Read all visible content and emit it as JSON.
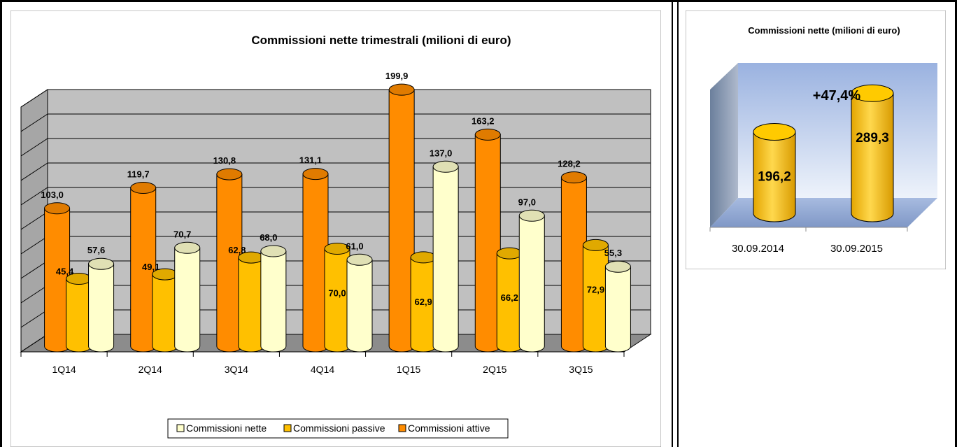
{
  "chart_data": [
    {
      "type": "bar",
      "title": "Commissioni nette trimestrali (milioni di euro)",
      "categories": [
        "1Q14",
        "2Q14",
        "3Q14",
        "4Q14",
        "1Q15",
        "2Q15",
        "3Q15"
      ],
      "series": [
        {
          "name": "Commissioni attive",
          "color": "#ff8c00",
          "values": [
            103.0,
            119.7,
            130.8,
            131.1,
            199.9,
            163.2,
            128.2
          ],
          "labels": [
            "103,0",
            "119,7",
            "130,8",
            "131,1",
            "199,9",
            "163,2",
            "128,2"
          ]
        },
        {
          "name": "Commissioni passive",
          "color": "#ffc000",
          "values": [
            45.4,
            49.1,
            62.8,
            70.0,
            62.9,
            66.2,
            72.9
          ],
          "labels": [
            "45,4",
            "49,1",
            "62,8",
            "70,0",
            "62,9",
            "66,2",
            "72,9"
          ]
        },
        {
          "name": "Commissioni nette",
          "color": "#ffffcc",
          "values": [
            57.6,
            70.7,
            68.0,
            61.0,
            137.0,
            97.0,
            55.3
          ],
          "labels": [
            "57,6",
            "70,7",
            "68,0",
            "61,0",
            "137,0",
            "97,0",
            "55,3"
          ]
        }
      ],
      "ylim": [
        0,
        200
      ],
      "grid": true,
      "legend": "bottom",
      "legend_order": [
        "Commissioni nette",
        "Commissioni passive",
        "Commissioni attive"
      ]
    },
    {
      "type": "bar",
      "title": "Commissioni nette (milioni di euro)",
      "categories": [
        "30.09.2014",
        "30.09.2015"
      ],
      "values": [
        196.2,
        289.3
      ],
      "labels": [
        "196,2",
        "289,3"
      ],
      "annotation": "+47,4%",
      "color": "#ffc000",
      "ylim": [
        0,
        320
      ],
      "grid": false,
      "legend": "none"
    }
  ]
}
